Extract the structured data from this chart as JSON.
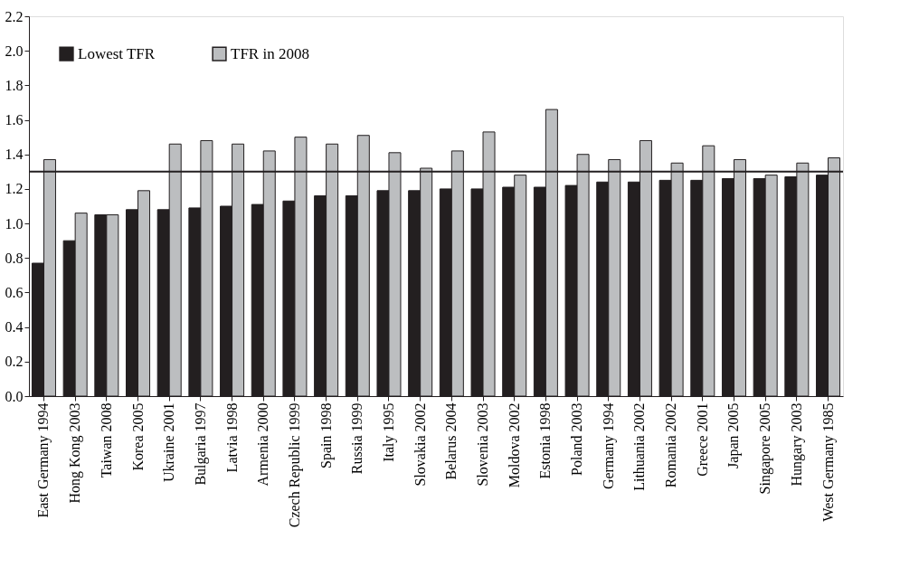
{
  "chart_data": {
    "type": "bar",
    "categories": [
      "East Germany 1994",
      "Hong Kong 2003",
      "Taiwan 2008",
      "Korea 2005",
      "Ukraine 2001",
      "Bulgaria 1997",
      "Latvia 1998",
      "Armenia 2000",
      "Czech Republic 1999",
      "Spain 1998",
      "Russia 1999",
      "Italy 1995",
      "Slovakia 2002",
      "Belarus 2004",
      "Slovenia 2003",
      "Moldova 2002",
      "Estonia 1998",
      "Poland 2003",
      "Germany 1994",
      "Lithuania 2002",
      "Romania 2002",
      "Greece 2001",
      "Japan 2005",
      "Singapore 2005",
      "Hungary 2003",
      "West Germany 1985"
    ],
    "series": [
      {
        "name": "Lowest TFR",
        "color": "#231f20",
        "values": [
          0.77,
          0.9,
          1.05,
          1.08,
          1.08,
          1.09,
          1.1,
          1.11,
          1.13,
          1.16,
          1.16,
          1.19,
          1.19,
          1.2,
          1.2,
          1.21,
          1.21,
          1.22,
          1.24,
          1.24,
          1.25,
          1.25,
          1.26,
          1.26,
          1.27,
          1.28
        ]
      },
      {
        "name": "TFR in 2008",
        "color": "#bcbec0",
        "values": [
          1.37,
          1.06,
          1.05,
          1.19,
          1.46,
          1.48,
          1.46,
          1.42,
          1.5,
          1.46,
          1.51,
          1.41,
          1.32,
          1.42,
          1.53,
          1.28,
          1.66,
          1.4,
          1.37,
          1.48,
          1.35,
          1.45,
          1.37,
          1.28,
          1.35,
          1.38
        ]
      }
    ],
    "ylim": [
      0,
      2.2
    ],
    "yticks": [
      {
        "value": 0,
        "label": "0.0"
      },
      0.2,
      0.4,
      0.6,
      0.8,
      {
        "value": 1,
        "label": "1.0"
      },
      1.2,
      1.4,
      1.6,
      1.8,
      {
        "value": 2,
        "label": "2.0"
      },
      2.2
    ],
    "ref_lines": [
      {
        "axis": "y",
        "value": 1.3,
        "color": "#231f20"
      }
    ],
    "legend": "top left"
  }
}
